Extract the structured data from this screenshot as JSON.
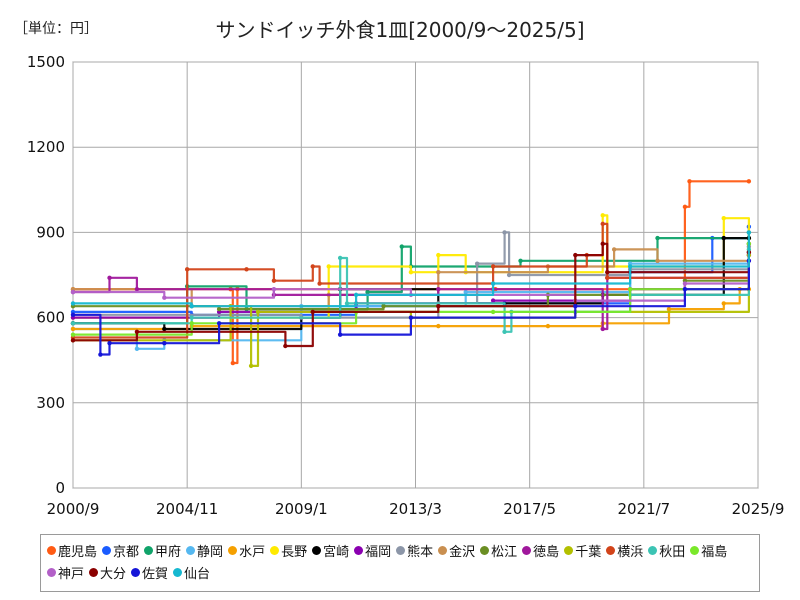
{
  "unit_label": "［単位：円］",
  "chart_data": {
    "type": "line",
    "title": "サンドイッチ外食1皿[2000/9～2025/5]",
    "xlabel": "",
    "ylabel": "",
    "x_range": [
      "2000-09",
      "2025-09"
    ],
    "ylim": [
      0,
      1500
    ],
    "y_ticks": [
      0,
      300,
      600,
      900,
      1200,
      1500
    ],
    "x_ticks": [
      {
        "label": "2000/9",
        "date": "2000-09"
      },
      {
        "label": "2004/11",
        "date": "2004-11"
      },
      {
        "label": "2009/1",
        "date": "2009-01"
      },
      {
        "label": "2013/3",
        "date": "2013-03"
      },
      {
        "label": "2017/5",
        "date": "2017-05"
      },
      {
        "label": "2021/7",
        "date": "2021-07"
      },
      {
        "label": "2025/9",
        "date": "2025-09"
      }
    ],
    "grid": true,
    "legend_position": "bottom",
    "series": [
      {
        "name": "鹿児島",
        "color": "#ff5b14",
        "points": [
          [
            "2000-09",
            700
          ],
          [
            "2006-06",
            700
          ],
          [
            "2006-07",
            440
          ],
          [
            "2006-09",
            700
          ],
          [
            "2016-01",
            700
          ],
          [
            "2016-02",
            700
          ],
          [
            "2023-01",
            990
          ],
          [
            "2023-03",
            1080
          ],
          [
            "2025-05",
            1080
          ]
        ]
      },
      {
        "name": "京都",
        "color": "#1a5cff",
        "points": [
          [
            "2000-09",
            620
          ],
          [
            "2005-01",
            610
          ],
          [
            "2011-01",
            640
          ],
          [
            "2016-06",
            650
          ],
          [
            "2021-01",
            760
          ],
          [
            "2024-01",
            880
          ],
          [
            "2025-05",
            920
          ]
        ]
      },
      {
        "name": "甲府",
        "color": "#10a36a",
        "points": [
          [
            "2000-09",
            580
          ],
          [
            "2004-11",
            710
          ],
          [
            "2007-01",
            630
          ],
          [
            "2011-06",
            690
          ],
          [
            "2012-09",
            850
          ],
          [
            "2013-01",
            780
          ],
          [
            "2017-01",
            800
          ],
          [
            "2022-01",
            880
          ],
          [
            "2025-05",
            900
          ]
        ]
      },
      {
        "name": "静岡",
        "color": "#55b8f0",
        "points": [
          [
            "2000-09",
            560
          ],
          [
            "2003-01",
            490
          ],
          [
            "2004-01",
            520
          ],
          [
            "2009-01",
            640
          ],
          [
            "2015-01",
            690
          ],
          [
            "2021-01",
            790
          ],
          [
            "2025-05",
            880
          ]
        ]
      },
      {
        "name": "水戸",
        "color": "#f5a000",
        "points": [
          [
            "2000-09",
            560
          ],
          [
            "2005-01",
            570
          ],
          [
            "2014-01",
            570
          ],
          [
            "2018-01",
            570
          ],
          [
            "2020-01",
            580
          ],
          [
            "2022-06",
            630
          ],
          [
            "2024-06",
            650
          ],
          [
            "2025-01",
            700
          ],
          [
            "2025-05",
            700
          ]
        ]
      },
      {
        "name": "長野",
        "color": "#ffea00",
        "points": [
          [
            "2000-09",
            600
          ],
          [
            "2010-01",
            780
          ],
          [
            "2013-01",
            760
          ],
          [
            "2014-01",
            820
          ],
          [
            "2015-01",
            760
          ],
          [
            "2020-01",
            960
          ],
          [
            "2020-03",
            780
          ],
          [
            "2024-06",
            950
          ],
          [
            "2025-05",
            880
          ]
        ]
      },
      {
        "name": "宮崎",
        "color": "#000000",
        "points": [
          [
            "2000-09",
            580
          ],
          [
            "2004-01",
            560
          ],
          [
            "2009-01",
            600
          ],
          [
            "2010-06",
            700
          ],
          [
            "2014-01",
            650
          ],
          [
            "2020-01",
            680
          ],
          [
            "2024-06",
            880
          ],
          [
            "2025-05",
            880
          ]
        ]
      },
      {
        "name": "福岡",
        "color": "#8a00b0",
        "points": [
          [
            "2000-09",
            600
          ],
          [
            "2006-01",
            620
          ],
          [
            "2011-01",
            650
          ],
          [
            "2016-01",
            660
          ],
          [
            "2021-01",
            700
          ],
          [
            "2025-05",
            800
          ]
        ]
      },
      {
        "name": "熊本",
        "color": "#8c96a8",
        "points": [
          [
            "2000-09",
            610
          ],
          [
            "2009-01",
            600
          ],
          [
            "2014-01",
            650
          ],
          [
            "2015-06",
            790
          ],
          [
            "2016-06",
            900
          ],
          [
            "2016-08",
            750
          ],
          [
            "2021-01",
            770
          ],
          [
            "2025-05",
            850
          ]
        ]
      },
      {
        "name": "金沢",
        "color": "#c98f50",
        "points": [
          [
            "2000-09",
            700
          ],
          [
            "2005-01",
            640
          ],
          [
            "2010-01",
            680
          ],
          [
            "2014-01",
            760
          ],
          [
            "2018-01",
            780
          ],
          [
            "2020-06",
            840
          ],
          [
            "2022-01",
            800
          ],
          [
            "2025-05",
            860
          ]
        ]
      },
      {
        "name": "松江",
        "color": "#6b8e23",
        "points": [
          [
            "2000-09",
            640
          ],
          [
            "2006-01",
            630
          ],
          [
            "2012-01",
            640
          ],
          [
            "2018-01",
            680
          ],
          [
            "2023-01",
            730
          ],
          [
            "2025-05",
            830
          ]
        ]
      },
      {
        "name": "徳島",
        "color": "#a0189c",
        "points": [
          [
            "2000-09",
            690
          ],
          [
            "2002-01",
            740
          ],
          [
            "2003-01",
            700
          ],
          [
            "2008-01",
            680
          ],
          [
            "2014-01",
            700
          ],
          [
            "2020-01",
            560
          ],
          [
            "2020-03",
            740
          ],
          [
            "2025-05",
            820
          ]
        ]
      },
      {
        "name": "千葉",
        "color": "#b3c000",
        "points": [
          [
            "2000-09",
            520
          ],
          [
            "2006-06",
            640
          ],
          [
            "2007-03",
            430
          ],
          [
            "2007-06",
            620
          ],
          [
            "2013-01",
            600
          ],
          [
            "2019-01",
            620
          ],
          [
            "2025-05",
            820
          ]
        ]
      },
      {
        "name": "横浜",
        "color": "#d2441a",
        "points": [
          [
            "2000-09",
            530
          ],
          [
            "2004-11",
            770
          ],
          [
            "2007-01",
            770
          ],
          [
            "2008-01",
            730
          ],
          [
            "2009-06",
            780
          ],
          [
            "2009-09",
            720
          ],
          [
            "2016-01",
            780
          ],
          [
            "2019-06",
            820
          ],
          [
            "2020-01",
            930
          ],
          [
            "2020-03",
            740
          ],
          [
            "2025-05",
            860
          ]
        ]
      },
      {
        "name": "秋田",
        "color": "#3cc4b4",
        "points": [
          [
            "2000-09",
            580
          ],
          [
            "2005-01",
            600
          ],
          [
            "2010-06",
            810
          ],
          [
            "2010-09",
            650
          ],
          [
            "2016-06",
            550
          ],
          [
            "2016-09",
            620
          ],
          [
            "2021-01",
            680
          ],
          [
            "2025-05",
            840
          ]
        ]
      },
      {
        "name": "福島",
        "color": "#7ae82a",
        "points": [
          [
            "2000-09",
            540
          ],
          [
            "2005-01",
            580
          ],
          [
            "2011-01",
            620
          ],
          [
            "2016-01",
            620
          ],
          [
            "2021-01",
            700
          ],
          [
            "2025-05",
            860
          ]
        ]
      },
      {
        "name": "神戸",
        "color": "#b360c8",
        "points": [
          [
            "2000-09",
            690
          ],
          [
            "2004-01",
            670
          ],
          [
            "2008-01",
            700
          ],
          [
            "2013-01",
            680
          ],
          [
            "2019-01",
            660
          ],
          [
            "2023-01",
            720
          ],
          [
            "2025-05",
            830
          ]
        ]
      },
      {
        "name": "大分",
        "color": "#8b0000",
        "points": [
          [
            "2000-09",
            520
          ],
          [
            "2003-01",
            550
          ],
          [
            "2008-06",
            500
          ],
          [
            "2009-06",
            620
          ],
          [
            "2014-01",
            640
          ],
          [
            "2019-01",
            820
          ],
          [
            "2020-01",
            860
          ],
          [
            "2020-03",
            760
          ],
          [
            "2025-05",
            830
          ]
        ]
      },
      {
        "name": "佐賀",
        "color": "#1515d8",
        "points": [
          [
            "2000-09",
            610
          ],
          [
            "2001-09",
            470
          ],
          [
            "2002-01",
            510
          ],
          [
            "2004-01",
            510
          ],
          [
            "2006-01",
            580
          ],
          [
            "2010-06",
            540
          ],
          [
            "2013-01",
            600
          ],
          [
            "2019-01",
            640
          ],
          [
            "2023-01",
            700
          ],
          [
            "2025-05",
            800
          ]
        ]
      },
      {
        "name": "仙台",
        "color": "#16b8d0",
        "points": [
          [
            "2000-09",
            650
          ],
          [
            "2005-01",
            640
          ],
          [
            "2011-01",
            680
          ],
          [
            "2016-01",
            720
          ],
          [
            "2021-01",
            780
          ],
          [
            "2025-05",
            900
          ]
        ]
      }
    ]
  }
}
